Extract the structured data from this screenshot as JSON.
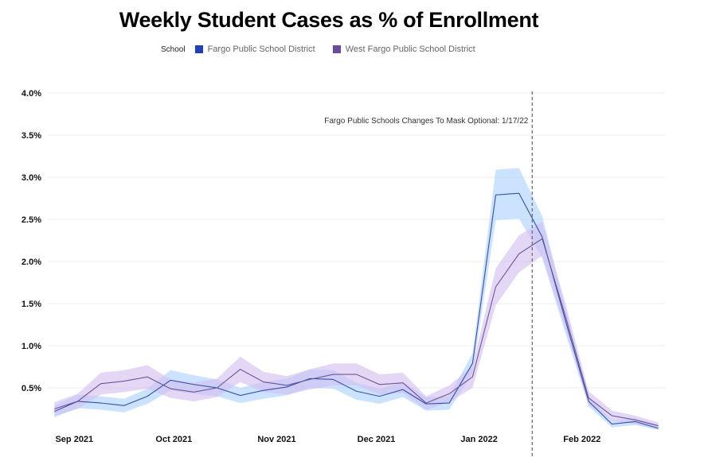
{
  "chart_data": {
    "type": "line",
    "title": "Weekly Student Cases as % of Enrollment",
    "legend_title": "School",
    "legend_placement": "top",
    "grid": true,
    "ylim": [
      0,
      4.0
    ],
    "y_ticks": [
      "0.5%",
      "1.0%",
      "1.5%",
      "2.0%",
      "2.5%",
      "3.0%",
      "3.5%",
      "4.0%"
    ],
    "y_tick_values": [
      0.5,
      1.0,
      1.5,
      2.0,
      2.5,
      3.0,
      3.5,
      4.0
    ],
    "x_ticks": [
      {
        "label": "Sep 2021",
        "date": "2021-09-01"
      },
      {
        "label": "Oct 2021",
        "date": "2021-10-01"
      },
      {
        "label": "Nov 2021",
        "date": "2021-11-01"
      },
      {
        "label": "Dec 2021",
        "date": "2021-12-01"
      },
      {
        "label": "Jan 2022",
        "date": "2022-01-01"
      },
      {
        "label": "Feb 2022",
        "date": "2022-02-01"
      }
    ],
    "xlim": [
      "2021-08-24",
      "2022-02-26"
    ],
    "x_start": "2021-08-26",
    "x_step_days": 7,
    "series": [
      {
        "name": "Fargo Public School District",
        "color": "#1f3fbf",
        "line_color": "#3650a8",
        "band_color": "#a9d1ff",
        "values": [
          0.22,
          0.34,
          0.32,
          0.29,
          0.4,
          0.59,
          0.54,
          0.5,
          0.41,
          0.47,
          0.51,
          0.61,
          0.6,
          0.46,
          0.4,
          0.48,
          0.31,
          0.32,
          0.79,
          2.79,
          2.81,
          2.29,
          1.3,
          0.34,
          0.07,
          0.1,
          0.02
        ],
        "band": [
          0.07,
          0.08,
          0.08,
          0.08,
          0.09,
          0.12,
          0.11,
          0.1,
          0.09,
          0.1,
          0.1,
          0.11,
          0.11,
          0.1,
          0.09,
          0.09,
          0.08,
          0.08,
          0.12,
          0.3,
          0.3,
          0.25,
          0.15,
          0.06,
          0.04,
          0.04,
          0.04
        ]
      },
      {
        "name": "West Fargo Public School District",
        "color": "#6b4c9a",
        "line_color": "#6e5694",
        "band_color": "#d2bdf0",
        "values": [
          0.25,
          0.34,
          0.55,
          0.58,
          0.63,
          0.49,
          0.45,
          0.5,
          0.72,
          0.57,
          0.53,
          0.6,
          0.66,
          0.66,
          0.54,
          0.56,
          0.32,
          0.43,
          0.63,
          1.7,
          2.09,
          2.27,
          1.35,
          0.38,
          0.17,
          0.12,
          0.05
        ],
        "band": [
          0.08,
          0.09,
          0.13,
          0.13,
          0.14,
          0.11,
          0.11,
          0.11,
          0.15,
          0.12,
          0.11,
          0.12,
          0.13,
          0.13,
          0.12,
          0.12,
          0.08,
          0.1,
          0.13,
          0.22,
          0.22,
          0.2,
          0.15,
          0.08,
          0.06,
          0.05,
          0.04
        ]
      }
    ],
    "annotation": {
      "text": "Fargo Public Schools Changes To Mask Optional: 1/17/22",
      "date": "2022-01-17",
      "style": "dashed-vertical-line"
    }
  }
}
